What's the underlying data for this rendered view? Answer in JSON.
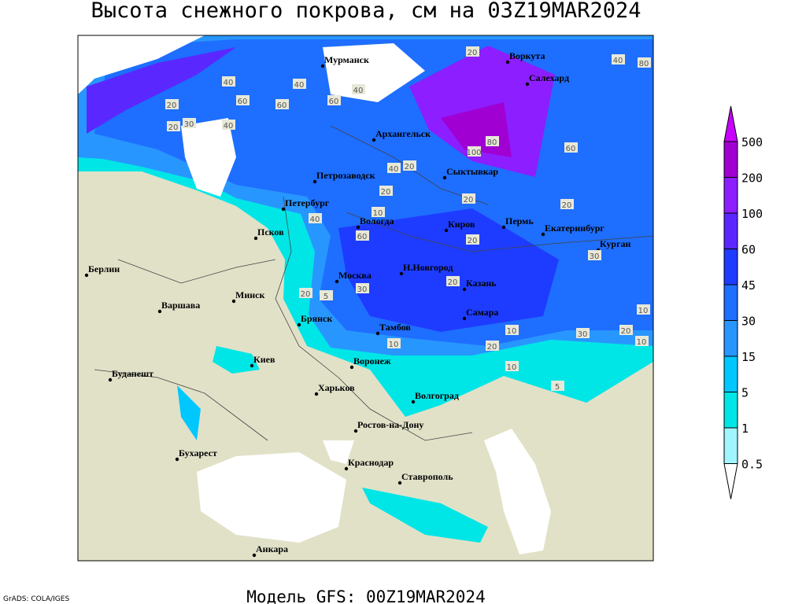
{
  "title": "Высота снежного покрова, см на 03Z19MAR2024",
  "subtitle": "Модель GFS: 00Z19MAR2024",
  "credit": "GrADS: COLA/IGES",
  "cities": [
    "Мурманск",
    "Воркута",
    "Салехард",
    "Архангельск",
    "Сыктывкар",
    "Петрозаводск",
    "Петербург",
    "Вологда",
    "Киров",
    "Пермь",
    "Екатеринбург",
    "Курган",
    "Псков",
    "Н.Новгород",
    "Москва",
    "Казань",
    "Берлин",
    "Варшава",
    "Минск",
    "Брянск",
    "Тамбов",
    "Самара",
    "Киев",
    "Воронеж",
    "Будапешт",
    "Харьков",
    "Волгоград",
    "Ростов-на-Дону",
    "Бухарест",
    "Краснодар",
    "Ставрополь",
    "Анкара"
  ],
  "contour_labels": [
    20,
    40,
    80,
    40,
    60,
    60,
    40,
    60,
    40,
    20,
    30,
    20,
    40,
    100,
    80,
    60,
    20,
    40,
    20,
    20,
    20,
    10,
    40,
    60,
    20,
    20,
    5,
    30,
    20,
    10,
    30,
    20,
    10,
    5,
    10,
    10,
    20,
    30,
    10
  ],
  "legend": {
    "levels": [
      500,
      200,
      100,
      60,
      45,
      30,
      15,
      5,
      1,
      0.5
    ],
    "colors": [
      "#c800ff",
      "#a000d2",
      "#8c1eff",
      "#5a28ff",
      "#1e3cff",
      "#1e6eff",
      "#2896ff",
      "#00c8ff",
      "#00e6e6",
      "#a0f5ff",
      "#ffffff"
    ]
  }
}
